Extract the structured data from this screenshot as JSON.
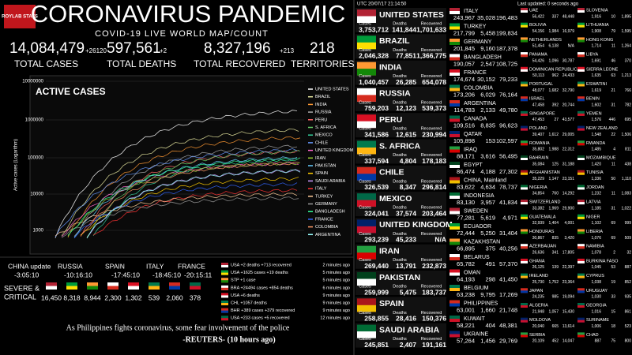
{
  "header": {
    "logo": "ROYLAB STATS",
    "title": "CORONAVIRUS PANDEMIC",
    "subtitle": "COVID-19 LIVE WORLD MAP/COUNT",
    "totals": [
      {
        "value": "14,084,479",
        "delta": "+26120",
        "label": "TOTAL CASES"
      },
      {
        "value": "597,561",
        "delta": "+2",
        "label": "TOTAL DEATHS"
      },
      {
        "value": "8,327,196",
        "delta": "+213",
        "label": "TOTAL RECOVERED"
      },
      {
        "value": "218",
        "label": "TERRITORIES"
      }
    ]
  },
  "chart": {
    "title": "ACTIVE CASES",
    "y_axis_label": "Active cases (Logarithm)",
    "yticks": [
      "10000000",
      "1000000",
      "100000",
      "10000",
      "1000"
    ],
    "legend": [
      "UNITED STATES",
      "BRAZIL",
      "INDIA",
      "RUSSIA",
      "PERU",
      "S. AFRICA",
      "MEXICO",
      "CHILE",
      "UNITED KINGDOM",
      "IRAN",
      "PAKISTAN",
      "SPAIN",
      "SAUDI ARABIA",
      "ITALY",
      "TURKEY",
      "GERMANY",
      "BANGLADESH",
      "FRANCE",
      "COLOMBIA",
      "ARGENTINA"
    ]
  },
  "timers": [
    {
      "country": "CHINA update",
      "time": "-3:05:10"
    },
    {
      "country": "RUSSIA",
      "time": "-10:16:10"
    },
    {
      "country": "SPAIN",
      "time": "-17:45:10"
    },
    {
      "country": "ITALY",
      "time": "-18:45:10"
    },
    {
      "country": "FRANCE",
      "time": "-20:15:11"
    }
  ],
  "severe": {
    "label": [
      "SEVERE &",
      "CRITICAL"
    ],
    "values": [
      "16,450",
      "8,318",
      "8,944",
      "2,300",
      "1,302",
      "539",
      "2,060",
      "378"
    ]
  },
  "feed": [
    {
      "text": "USA +2 deaths +713 recovered",
      "time": "2 minutes ago"
    },
    {
      "text": "USA +1625 cases +19 deaths",
      "time": "5 minutes ago"
    },
    {
      "text": "STP +1 case",
      "time": "5 minutes ago"
    },
    {
      "text": "BRA +24494 cases +854 deaths",
      "time": "6 minutes ago"
    },
    {
      "text": "USA +6 deaths",
      "time": "9 minutes ago"
    },
    {
      "text": "CHL +1057 deaths",
      "time": "9 minutes ago"
    },
    {
      "text": "BHR +389 cases +379 recovered",
      "time": "9 minutes ago"
    },
    {
      "text": "USA +233 cases +5 recovered",
      "time": "12 minutes ago"
    }
  ],
  "headline": {
    "text": "As Philippines fights coronavirus, some fear involvement of the police",
    "source": "-REUTERS- (10 hours ago)"
  },
  "table": {
    "time": "UTC 20/07/17 21:14:50",
    "updated": "Last updated: 0 seconds ago",
    "column_headers": [
      "Cases",
      "Deaths",
      "Recovered"
    ],
    "large": [
      {
        "name": "UNITED STATES",
        "values": [
          "3,753,712",
          "141,844",
          "1,701,633"
        ]
      },
      {
        "name": "BRAZIL",
        "values": [
          "2,046,328",
          "77,851",
          "1,366,775"
        ]
      },
      {
        "name": "INDIA",
        "values": [
          "1,040,457",
          "26,285",
          "654,078"
        ]
      },
      {
        "name": "RUSSIA",
        "values": [
          "759,203",
          "12,123",
          "539,373"
        ]
      },
      {
        "name": "PERU",
        "values": [
          "341,586",
          "12,615",
          "230,994"
        ]
      },
      {
        "name": "S. AFRICA",
        "values": [
          "337,594",
          "4,804",
          "178,183"
        ]
      },
      {
        "name": "CHILE",
        "values": [
          "326,539",
          "8,347",
          "296,814"
        ]
      },
      {
        "name": "MEXICO",
        "values": [
          "324,041",
          "37,574",
          "203,464"
        ]
      },
      {
        "name": "UNITED KINGDOM",
        "values": [
          "293,239",
          "45,233",
          "N/A"
        ]
      },
      {
        "name": "IRAN",
        "values": [
          "269,440",
          "13,791",
          "232,873"
        ]
      },
      {
        "name": "PAKISTAN",
        "values": [
          "259,999",
          "5,475",
          "183,737"
        ]
      },
      {
        "name": "SPAIN",
        "values": [
          "258,855",
          "28,416",
          "150,376"
        ]
      },
      {
        "name": "SAUDI ARABIA",
        "values": [
          "245,851",
          "2,407",
          "191,161"
        ]
      }
    ],
    "medium": [
      {
        "name": "ITALY",
        "values": [
          "243,967",
          "35,028",
          "196,483"
        ]
      },
      {
        "name": "TURKEY",
        "values": [
          "217,799",
          "5,458",
          "199,834"
        ]
      },
      {
        "name": "GERMANY",
        "values": [
          "201,845",
          "9,160",
          "187,378"
        ]
      },
      {
        "name": "BANGLADESH",
        "values": [
          "190,057",
          "2,547",
          "108,725"
        ]
      },
      {
        "name": "FRANCE",
        "values": [
          "174,674",
          "30,152",
          "79,233"
        ]
      },
      {
        "name": "COLOMBIA",
        "values": [
          "173,206",
          "6,029",
          "76,164"
        ]
      },
      {
        "name": "ARGENTINA",
        "values": [
          "114,783",
          "2,133",
          "49,780"
        ]
      },
      {
        "name": "CANADA",
        "values": [
          "109,516",
          "8,835",
          "96,623"
        ]
      },
      {
        "name": "QATAR",
        "values": [
          "105,898",
          "153",
          "102,597"
        ]
      },
      {
        "name": "IRAQ",
        "values": [
          "88,171",
          "3,616",
          "56,495"
        ]
      },
      {
        "name": "EGYPT",
        "values": [
          "86,474",
          "4,188",
          "27,302"
        ]
      },
      {
        "name": "CHINA, Mainland",
        "values": [
          "83,622",
          "4,634",
          "78,737"
        ]
      },
      {
        "name": "INDONESIA",
        "values": [
          "83,130",
          "3,957",
          "41,834"
        ]
      },
      {
        "name": "SWEDEN",
        "values": [
          "77,281",
          "5,619",
          "4,971"
        ]
      },
      {
        "name": "ECUADOR",
        "values": [
          "72,444",
          "5,250",
          "31,404"
        ]
      },
      {
        "name": "KAZAKHSTAN",
        "values": [
          "66,895",
          "375",
          "40,256"
        ]
      },
      {
        "name": "BELARUS",
        "values": [
          "65,782",
          "491",
          "57,370"
        ]
      },
      {
        "name": "OMAN",
        "values": [
          "64,193",
          "298",
          "41,450"
        ]
      },
      {
        "name": "BELGIUM",
        "values": [
          "63,238",
          "9,795",
          "17,269"
        ]
      },
      {
        "name": "PHILIPPINES",
        "values": [
          "63,001",
          "1,660",
          "21,748"
        ]
      },
      {
        "name": "KUWAIT",
        "values": [
          "58,221",
          "404",
          "48,381"
        ]
      },
      {
        "name": "UKRAINE",
        "values": [
          "57,264",
          "1,456",
          "29,769"
        ]
      }
    ],
    "small_a": [
      {
        "name": "UAE",
        "values": [
          "56,422",
          "337",
          "48,448"
        ]
      },
      {
        "name": "BOLIVIA",
        "values": [
          "54,156",
          "1,984",
          "16,979"
        ]
      },
      {
        "name": "NETHERLANDS",
        "values": [
          "51,454",
          "6,138",
          "N/A"
        ]
      },
      {
        "name": "PANAMA",
        "values": [
          "54,426",
          "1,096",
          "30,787"
        ]
      },
      {
        "name": "DOMINICAN REPUBLIC",
        "values": [
          "50,113",
          "962",
          "24,433"
        ]
      },
      {
        "name": "PORTUGAL",
        "values": [
          "48,077",
          "1,682",
          "32,790"
        ]
      },
      {
        "name": "ISRAEL",
        "values": [
          "47,458",
          "392",
          "20,744"
        ]
      },
      {
        "name": "SINGAPORE",
        "values": [
          "47,453",
          "27",
          "43,577"
        ]
      },
      {
        "name": "POLAND",
        "values": [
          "39,407",
          "1,612",
          "29,005"
        ]
      },
      {
        "name": "ROMANIA",
        "values": [
          "35,802",
          "1,988",
          "22,312"
        ]
      },
      {
        "name": "BAHRAIN",
        "values": [
          "35,084",
          "125",
          "31,188"
        ]
      },
      {
        "name": "AFGHANISTAN",
        "values": [
          "35,229",
          "1,147",
          "23,151"
        ]
      },
      {
        "name": "NIGERIA",
        "values": [
          "34,854",
          "760",
          "14,292"
        ]
      },
      {
        "name": "SWITZERLAND",
        "values": [
          "33,382",
          "1,969",
          "29,900"
        ]
      },
      {
        "name": "GUATEMALA",
        "values": [
          "32,939",
          "1,404",
          "4,001"
        ]
      },
      {
        "name": "HONDURAS",
        "values": [
          "30,867",
          "835",
          "3,420"
        ]
      },
      {
        "name": "AZERBAIJAN",
        "values": [
          "26,636",
          "341",
          "17,805"
        ]
      },
      {
        "name": "GHANA",
        "values": [
          "26,125",
          "139",
          "22,397"
        ]
      },
      {
        "name": "IRELAND",
        "values": [
          "25,730",
          "1,752",
          "23,364"
        ]
      },
      {
        "name": "JAPAN",
        "values": [
          "24,235",
          "985",
          "19,094"
        ]
      },
      {
        "name": "ALGERIA",
        "values": [
          "21,948",
          "1,057",
          "15,430"
        ]
      },
      {
        "name": "MOLDOVA",
        "values": [
          "20,040",
          "665",
          "13,614"
        ]
      },
      {
        "name": "SERBIA",
        "values": [
          "20,109",
          "452",
          "14,047"
        ]
      }
    ],
    "small_b": [
      {
        "name": "SLOVENIA",
        "values": [
          "1,916",
          "10",
          "1,895"
        ]
      },
      {
        "name": "LITHUANIA",
        "values": [
          "1,908",
          "79",
          "1,595"
        ]
      },
      {
        "name": "HONG KONG",
        "values": [
          "1,714",
          "11",
          "1,264"
        ]
      },
      {
        "name": "LIBYA",
        "values": [
          "1,691",
          "46",
          "370"
        ]
      },
      {
        "name": "SIERRA LEONE",
        "values": [
          "1,635",
          "63",
          "1,213"
        ]
      },
      {
        "name": "ESWATINI",
        "values": [
          "1,619",
          "21",
          "766"
        ]
      },
      {
        "name": "BENIN",
        "values": [
          "1,602",
          "31",
          "782"
        ]
      },
      {
        "name": "YEMEN",
        "values": [
          "1,576",
          "446",
          "695"
        ]
      },
      {
        "name": "NEW ZEALAND",
        "values": [
          "1,548",
          "22",
          "1,506"
        ]
      },
      {
        "name": "RWANDA",
        "values": [
          "1,485",
          "4",
          "811"
        ]
      },
      {
        "name": "MOZAMBIQUE",
        "values": [
          "1,420",
          "11",
          "438"
        ]
      },
      {
        "name": "TUNISIA",
        "values": [
          "1,336",
          "50",
          "1,110"
        ]
      },
      {
        "name": "JORDAN",
        "values": [
          "1,232",
          "11",
          "1,083"
        ]
      },
      {
        "name": "LATVIA",
        "values": [
          "1,185",
          "31",
          "1,022"
        ]
      },
      {
        "name": "NIGER",
        "values": [
          "1,102",
          "69",
          "999"
        ]
      },
      {
        "name": "LIBERIA",
        "values": [
          "1,076",
          "69",
          "509"
        ]
      },
      {
        "name": "NAMIBIA",
        "values": [
          "1,078",
          "2",
          "32"
        ]
      },
      {
        "name": "BURKINA FASO",
        "values": [
          "1,045",
          "53",
          "887"
        ]
      },
      {
        "name": "CYPRUS",
        "values": [
          "1,038",
          "19",
          "852"
        ]
      },
      {
        "name": "URUGUAY",
        "values": [
          "1,030",
          "33",
          "935"
        ]
      },
      {
        "name": "GEORGIA",
        "values": [
          "1,016",
          "15",
          "861"
        ]
      },
      {
        "name": "SURINAME",
        "values": [
          "1,006",
          "18",
          "523"
        ]
      },
      {
        "name": "CHAD",
        "values": [
          "887",
          "75",
          "800"
        ]
      }
    ]
  }
}
